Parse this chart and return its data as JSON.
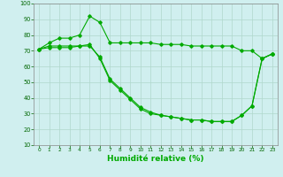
{
  "line1": {
    "x": [
      0,
      1,
      2,
      3,
      4,
      5,
      6,
      7,
      8,
      9,
      10,
      11,
      12,
      13,
      14,
      15,
      16,
      17,
      18,
      19,
      20,
      21,
      22,
      23
    ],
    "y": [
      71,
      75,
      78,
      78,
      80,
      92,
      88,
      75,
      75,
      75,
      75,
      75,
      74,
      74,
      74,
      73,
      73,
      73,
      73,
      73,
      70,
      70,
      65,
      68
    ]
  },
  "line2": {
    "x": [
      0,
      1,
      2,
      3,
      4,
      5,
      6,
      7,
      8,
      9,
      10,
      11,
      12,
      13,
      14,
      15,
      16,
      17,
      18,
      19,
      20,
      21,
      22,
      23
    ],
    "y": [
      71,
      73,
      73,
      73,
      73,
      74,
      65,
      51,
      45,
      39,
      33,
      30,
      29,
      28,
      27,
      26,
      26,
      25,
      25,
      25,
      29,
      35,
      65,
      68
    ]
  },
  "line3": {
    "x": [
      0,
      1,
      2,
      3,
      4,
      5,
      6,
      7,
      8,
      9,
      10,
      11,
      12,
      13,
      14,
      15,
      16,
      17,
      18,
      19,
      20,
      21,
      22,
      23
    ],
    "y": [
      71,
      72,
      72,
      72,
      73,
      73,
      66,
      52,
      46,
      40,
      34,
      31,
      29,
      28,
      27,
      26,
      26,
      25,
      25,
      25,
      29,
      35,
      65,
      68
    ]
  },
  "line_color": "#00aa00",
  "bg_color": "#d0efef",
  "grid_color": "#b0d8cc",
  "xlabel": "Humidité relative (%)",
  "ylim": [
    10,
    100
  ],
  "xlim": [
    -0.5,
    23.5
  ],
  "yticks": [
    10,
    20,
    30,
    40,
    50,
    60,
    70,
    80,
    90,
    100
  ],
  "xticks": [
    0,
    1,
    2,
    3,
    4,
    5,
    6,
    7,
    8,
    9,
    10,
    11,
    12,
    13,
    14,
    15,
    16,
    17,
    18,
    19,
    20,
    21,
    22,
    23
  ]
}
